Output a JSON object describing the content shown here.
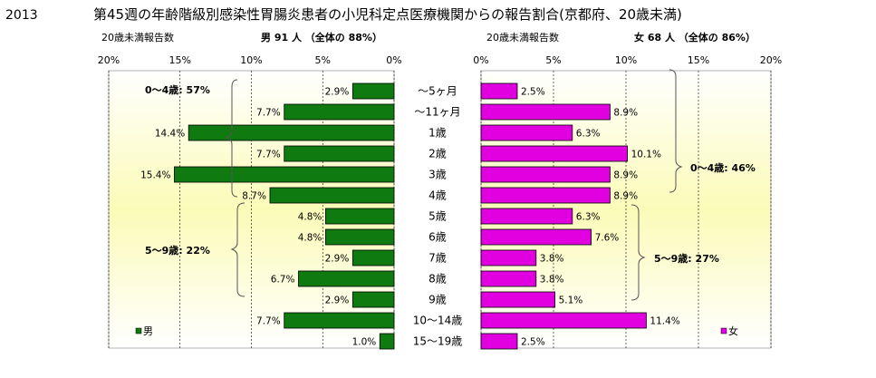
{
  "header": {
    "year": "2013",
    "title": "第45週の年齢階級別感染性胃腸炎患者の小児科定点医療機関からの報告割合(京都府、20歳未満)"
  },
  "panels": {
    "male": {
      "caption": "20歳未満報告数",
      "summary": "男  91 人  （全体の  88%）",
      "legend": "男",
      "groups": [
        {
          "label": "0～4歳: 57%"
        },
        {
          "label": "5～9歳: 22%"
        }
      ]
    },
    "female": {
      "caption": "20歳未満報告数",
      "summary": "女  68 人  （全体の  86%）",
      "legend": "女",
      "groups": [
        {
          "label": "0～4歳: 46%"
        },
        {
          "label": "5～9歳: 27%"
        }
      ]
    }
  },
  "colors": {
    "male": "#0f7a0f",
    "female": "#e000e0",
    "plot_bg_edge": "#ffffff",
    "plot_bg_center": "#fbfbb8",
    "grid": "#000000"
  },
  "chart_data": {
    "type": "bar",
    "orientation": "horizontal-butterfly",
    "categories": [
      "～5ヶ月",
      "～11ヶ月",
      "1歳",
      "2歳",
      "3歳",
      "4歳",
      "5歳",
      "6歳",
      "7歳",
      "8歳",
      "9歳",
      "10～14歳",
      "15～19歳"
    ],
    "xlim": [
      0,
      20
    ],
    "ticks": [
      "0%",
      "5%",
      "10%",
      "15%",
      "20%"
    ],
    "tick_values": [
      0,
      5,
      10,
      15,
      20
    ],
    "series": [
      {
        "name": "男",
        "values": [
          2.9,
          7.7,
          14.4,
          7.7,
          15.4,
          8.7,
          4.8,
          4.8,
          2.9,
          6.7,
          2.9,
          7.7,
          1.0
        ],
        "labels": [
          "2.9%",
          "7.7%",
          "14.4%",
          "7.7%",
          "15.4%",
          "8.7%",
          "4.8%",
          "4.8%",
          "2.9%",
          "6.7%",
          "2.9%",
          "7.7%",
          "1.0%"
        ]
      },
      {
        "name": "女",
        "values": [
          2.5,
          8.9,
          6.3,
          10.1,
          8.9,
          8.9,
          6.3,
          7.6,
          3.8,
          3.8,
          5.1,
          11.4,
          2.5
        ],
        "labels": [
          "2.5%",
          "8.9%",
          "6.3%",
          "10.1%",
          "8.9%",
          "8.9%",
          "6.3%",
          "7.6%",
          "3.8%",
          "3.8%",
          "5.1%",
          "11.4%",
          "2.5%"
        ]
      }
    ]
  }
}
